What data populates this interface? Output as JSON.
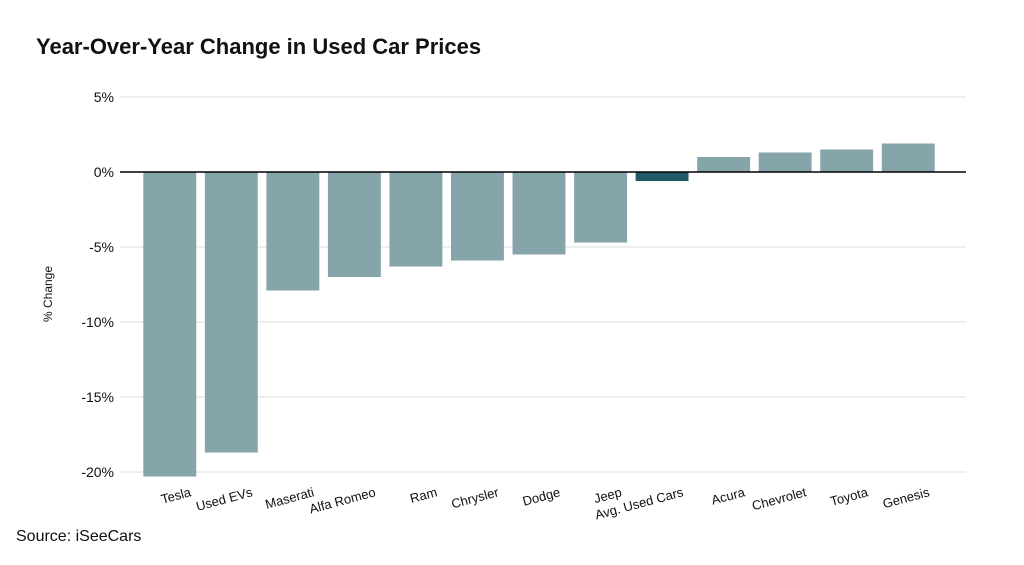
{
  "chart_data": {
    "type": "bar",
    "title": "Year-Over-Year Change in Used Car Prices",
    "y_label": "% Change",
    "source": "Source: iSeeCars",
    "categories": [
      "Tesla",
      "Used EVs",
      "Maserati",
      "Alfa Romeo",
      "Ram",
      "Chrysler",
      "Dodge",
      "Jeep",
      "Avg. Used Cars",
      "Acura",
      "Chevrolet",
      "Toyota",
      "Genesis"
    ],
    "values": [
      -20.3,
      -18.7,
      -7.9,
      -7.0,
      -6.3,
      -5.9,
      -5.5,
      -4.7,
      -0.6,
      1.0,
      1.3,
      1.5,
      1.9
    ],
    "colors": [
      "#86a5aa",
      "#86a5aa",
      "#86a5aa",
      "#86a5aa",
      "#86a5aa",
      "#86a5aa",
      "#86a5aa",
      "#86a5aa",
      "#1e5b66",
      "#86a5aa",
      "#86a5aa",
      "#86a5aa",
      "#86a5aa"
    ],
    "ylim": [
      -21,
      5
    ],
    "yticks": [
      {
        "value": 5,
        "label": "5%"
      },
      {
        "value": 0,
        "label": "0%"
      },
      {
        "value": -5,
        "label": "-5%"
      },
      {
        "value": -10,
        "label": "-10%"
      },
      {
        "value": -15,
        "label": "-15%"
      },
      {
        "value": -20,
        "label": "-20%"
      }
    ],
    "grid": true
  }
}
